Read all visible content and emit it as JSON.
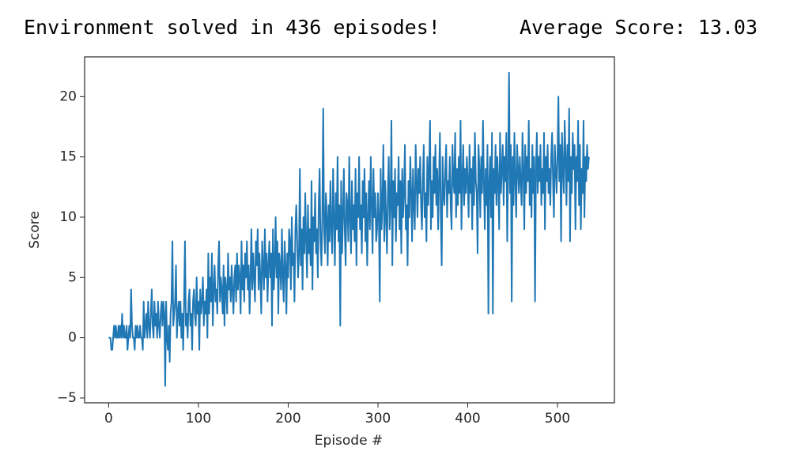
{
  "console_output": [
    "Environment solved in 436 episodes!",
    "Average Score: 13.03"
  ],
  "chart_data": {
    "type": "line",
    "xlabel": "Episode #",
    "ylabel": "Score",
    "xlim": [
      -26.8,
      563.4
    ],
    "ylim": [
      -5.4,
      23.3
    ],
    "xticks": [
      0,
      100,
      200,
      300,
      400,
      500
    ],
    "yticks": [
      {
        "value": -5,
        "label": "−5"
      },
      0,
      5,
      10,
      15,
      20
    ],
    "series": [
      {
        "color": "#1f77b4",
        "x": [
          0,
          1,
          2,
          3,
          4,
          5,
          6,
          7,
          8,
          9,
          10,
          11,
          12,
          13,
          14,
          15,
          16,
          17,
          18,
          19,
          20,
          21,
          22,
          23,
          24,
          25,
          26,
          27,
          28,
          29,
          30,
          31,
          32,
          33,
          34,
          35,
          36,
          37,
          38,
          39,
          40,
          41,
          42,
          43,
          44,
          45,
          46,
          47,
          48,
          49,
          50,
          51,
          52,
          53,
          54,
          55,
          56,
          57,
          58,
          59,
          60,
          61,
          62,
          63,
          64,
          65,
          66,
          67,
          68,
          69,
          70,
          71,
          72,
          73,
          74,
          75,
          76,
          77,
          78,
          79,
          80,
          81,
          82,
          83,
          84,
          85,
          86,
          87,
          88,
          89,
          90,
          91,
          92,
          93,
          94,
          95,
          96,
          97,
          98,
          99,
          100,
          101,
          102,
          103,
          104,
          105,
          106,
          107,
          108,
          109,
          110,
          111,
          112,
          113,
          114,
          115,
          116,
          117,
          118,
          119,
          120,
          121,
          122,
          123,
          124,
          125,
          126,
          127,
          128,
          129,
          130,
          131,
          132,
          133,
          134,
          135,
          136,
          137,
          138,
          139,
          140,
          141,
          142,
          143,
          144,
          145,
          146,
          147,
          148,
          149,
          150,
          151,
          152,
          153,
          154,
          155,
          156,
          157,
          158,
          159,
          160,
          161,
          162,
          163,
          164,
          165,
          166,
          167,
          168,
          169,
          170,
          171,
          172,
          173,
          174,
          175,
          176,
          177,
          178,
          179,
          180,
          181,
          182,
          183,
          184,
          185,
          186,
          187,
          188,
          189,
          190,
          191,
          192,
          193,
          194,
          195,
          196,
          197,
          198,
          199,
          200,
          201,
          202,
          203,
          204,
          205,
          206,
          207,
          208,
          209,
          210,
          211,
          212,
          213,
          214,
          215,
          216,
          217,
          218,
          219,
          220,
          221,
          222,
          223,
          224,
          225,
          226,
          227,
          228,
          229,
          230,
          231,
          232,
          233,
          234,
          235,
          236,
          237,
          238,
          239,
          240,
          241,
          242,
          243,
          244,
          245,
          246,
          247,
          248,
          249,
          250,
          251,
          252,
          253,
          254,
          255,
          256,
          257,
          258,
          259,
          260,
          261,
          262,
          263,
          264,
          265,
          266,
          267,
          268,
          269,
          270,
          271,
          272,
          273,
          274,
          275,
          276,
          277,
          278,
          279,
          280,
          281,
          282,
          283,
          284,
          285,
          286,
          287,
          288,
          289,
          290,
          291,
          292,
          293,
          294,
          295,
          296,
          297,
          298,
          299,
          300,
          301,
          302,
          303,
          304,
          305,
          306,
          307,
          308,
          309,
          310,
          311,
          312,
          313,
          314,
          315,
          316,
          317,
          318,
          319,
          320,
          321,
          322,
          323,
          324,
          325,
          326,
          327,
          328,
          329,
          330,
          331,
          332,
          333,
          334,
          335,
          336,
          337,
          338,
          339,
          340,
          341,
          342,
          343,
          344,
          345,
          346,
          347,
          348,
          349,
          350,
          351,
          352,
          353,
          354,
          355,
          356,
          357,
          358,
          359,
          360,
          361,
          362,
          363,
          364,
          365,
          366,
          367,
          368,
          369,
          370,
          371,
          372,
          373,
          374,
          375,
          376,
          377,
          378,
          379,
          380,
          381,
          382,
          383,
          384,
          385,
          386,
          387,
          388,
          389,
          390,
          391,
          392,
          393,
          394,
          395,
          396,
          397,
          398,
          399,
          400,
          401,
          402,
          403,
          404,
          405,
          406,
          407,
          408,
          409,
          410,
          411,
          412,
          413,
          414,
          415,
          416,
          417,
          418,
          419,
          420,
          421,
          422,
          423,
          424,
          425,
          426,
          427,
          428,
          429,
          430,
          431,
          432,
          433,
          434,
          435,
          436,
          437,
          438,
          439,
          440,
          441,
          442,
          443,
          444,
          445,
          446,
          447,
          448,
          449,
          450,
          451,
          452,
          453,
          454,
          455,
          456,
          457,
          458,
          459,
          460,
          461,
          462,
          463,
          464,
          465,
          466,
          467,
          468,
          469,
          470,
          471,
          472,
          473,
          474,
          475,
          476,
          477,
          478,
          479,
          480,
          481,
          482,
          483,
          484,
          485,
          486,
          487,
          488,
          489,
          490,
          491,
          492,
          493,
          494,
          495,
          496,
          497,
          498,
          499,
          500,
          501,
          502,
          503,
          504,
          505,
          506,
          507,
          508,
          509,
          510,
          511,
          512,
          513,
          514,
          515,
          516,
          517,
          518,
          519,
          520,
          521,
          522,
          523,
          524,
          525,
          526,
          527,
          528,
          529,
          530,
          531,
          532,
          533,
          534,
          535
        ],
        "values": [
          0,
          0,
          0,
          -1,
          -1,
          0,
          1,
          0,
          1,
          0,
          0,
          1,
          0,
          1,
          0,
          2,
          0,
          1,
          0,
          0,
          1,
          -1,
          0,
          1,
          0,
          4,
          1,
          0,
          0,
          -1,
          1,
          0,
          1,
          0,
          0,
          1,
          0,
          0,
          -1,
          3,
          0,
          1,
          2,
          0,
          3,
          1,
          0,
          2,
          4,
          1,
          0,
          3,
          1,
          2,
          0,
          3,
          1,
          0,
          2,
          3,
          1,
          3,
          2,
          -4,
          3,
          0,
          -1,
          1,
          -2,
          2,
          3,
          8,
          1,
          2,
          3,
          6,
          0,
          2,
          3,
          1,
          3,
          0,
          2,
          -1,
          3,
          8,
          1,
          2,
          0,
          3,
          4,
          1,
          2,
          -1,
          3,
          4,
          2,
          1,
          5,
          2,
          3,
          -1,
          4,
          2,
          3,
          5,
          1,
          3,
          2,
          4,
          0,
          7,
          2,
          5,
          3,
          7,
          1,
          4,
          6,
          3,
          4,
          2,
          6,
          8,
          3,
          5,
          4,
          2,
          6,
          1,
          5,
          4,
          2,
          7,
          4,
          5,
          3,
          6,
          4,
          2,
          5,
          6,
          3,
          7,
          4,
          6,
          5,
          2,
          8,
          4,
          6,
          3,
          7,
          5,
          8,
          4,
          6,
          2,
          5,
          9,
          4,
          7,
          5,
          3,
          8,
          6,
          9,
          4,
          7,
          5,
          2,
          8,
          6,
          4,
          9,
          5,
          7,
          3,
          6,
          8,
          5,
          7,
          1,
          9,
          4,
          6,
          10,
          5,
          8,
          2,
          7,
          6,
          4,
          9,
          5,
          3,
          8,
          6,
          2,
          7,
          5,
          9,
          8,
          4,
          10,
          6,
          7,
          3,
          9,
          11,
          8,
          5,
          7,
          14,
          6,
          9,
          4,
          10,
          7,
          12,
          8,
          5,
          11,
          7,
          9,
          6,
          13,
          4,
          10,
          8,
          12,
          7,
          9,
          5,
          11,
          14,
          8,
          6,
          10,
          19,
          9,
          7,
          12,
          10,
          6,
          11,
          8,
          13,
          9,
          7,
          14,
          10,
          6,
          12,
          9,
          15,
          8,
          11,
          1,
          13,
          7,
          10,
          14,
          9,
          6,
          12,
          11,
          8,
          15,
          10,
          7,
          13,
          9,
          11,
          8,
          14,
          6,
          12,
          10,
          15,
          9,
          11,
          7,
          13,
          10,
          14,
          8,
          12,
          6,
          10,
          13,
          9,
          15,
          11,
          7,
          14,
          10,
          12,
          8,
          9,
          12,
          10,
          3,
          14,
          9,
          11,
          16,
          8,
          13,
          10,
          7,
          12,
          15,
          9,
          11,
          18,
          6,
          13,
          10,
          14,
          8,
          12,
          11,
          15,
          9,
          13,
          7,
          14,
          10,
          12,
          16,
          9,
          11,
          6,
          13,
          10,
          15,
          12,
          8,
          14,
          11,
          9,
          16,
          13,
          10,
          14,
          12,
          15,
          11,
          9,
          13,
          16,
          10,
          12,
          8,
          15,
          11,
          14,
          18,
          9,
          13,
          10,
          15,
          12,
          16,
          11,
          14,
          9,
          13,
          17,
          10,
          6,
          15,
          12,
          11,
          14,
          16,
          10,
          13,
          12,
          15,
          11,
          9,
          16,
          13,
          12,
          17,
          10,
          14,
          11,
          15,
          12,
          18,
          9,
          13,
          16,
          11,
          14,
          12,
          15,
          13,
          10,
          16,
          12,
          14,
          9,
          15,
          11,
          17,
          13,
          12,
          7,
          16,
          14,
          10,
          15,
          12,
          18,
          13,
          9,
          14,
          11,
          16,
          2,
          13,
          15,
          10,
          17,
          2,
          14,
          12,
          16,
          11,
          15,
          13,
          9,
          17,
          12,
          14,
          16,
          11,
          15,
          13,
          17,
          8,
          14,
          22,
          12,
          16,
          3,
          15,
          11,
          17,
          13,
          10,
          16,
          14,
          12,
          15,
          13,
          11,
          17,
          14,
          9,
          16,
          12,
          15,
          13,
          18,
          11,
          14,
          10,
          16,
          12,
          15,
          3,
          14,
          17,
          12,
          15,
          13,
          16,
          11,
          14,
          12,
          17,
          9,
          15,
          13,
          16,
          12,
          14,
          11,
          15,
          17,
          13,
          10,
          16,
          14,
          12,
          15,
          20,
          13,
          16,
          8,
          17,
          14,
          12,
          18,
          15,
          11,
          16,
          13,
          19,
          8,
          15,
          12,
          17,
          14,
          16,
          9,
          15,
          13,
          18,
          11,
          16,
          9,
          14,
          12,
          18,
          10,
          15,
          13,
          16,
          14,
          15
        ]
      }
    ]
  }
}
